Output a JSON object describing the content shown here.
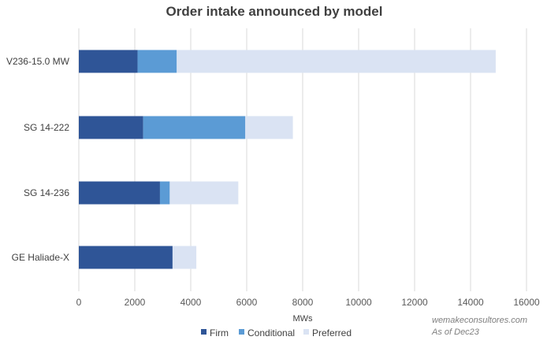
{
  "chart_data": {
    "type": "bar",
    "orientation": "horizontal",
    "stacked": true,
    "title": "Order intake announced by model",
    "xlabel": "MWs",
    "ylabel": "",
    "categories": [
      "V236-15.0 MW",
      "SG 14-222",
      "SG 14-236",
      "GE Haliade-X"
    ],
    "series": [
      {
        "name": "Firm",
        "color": "#2f5597",
        "values": [
          2100,
          2300,
          2900,
          3350
        ]
      },
      {
        "name": "Conditional",
        "color": "#5b9bd5",
        "values": [
          1400,
          3650,
          350,
          0
        ]
      },
      {
        "name": "Preferred",
        "color": "#dae3f3",
        "values": [
          11400,
          1700,
          2450,
          850
        ]
      }
    ],
    "xlim": [
      0,
      16000
    ],
    "xticks": [
      0,
      2000,
      4000,
      6000,
      8000,
      10000,
      12000,
      14000,
      16000
    ],
    "xtick_labels": [
      "0",
      "2000",
      "4000",
      "6000",
      "8000",
      "10000",
      "12000",
      "14000",
      "16000"
    ],
    "grid": true,
    "legend_position": "bottom",
    "annotations": [
      "wemakeconsultores.com",
      "As of Dec23"
    ]
  }
}
